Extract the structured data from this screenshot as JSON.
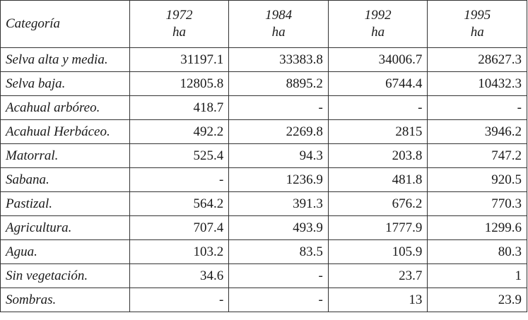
{
  "table": {
    "header": {
      "category": "Categoría",
      "columns": [
        {
          "year": "1972",
          "unit": "ha"
        },
        {
          "year": "1984",
          "unit": "ha"
        },
        {
          "year": "1992",
          "unit": "ha"
        },
        {
          "year": "1995",
          "unit": "ha"
        }
      ]
    },
    "rows": [
      [
        "Selva alta y media.",
        "31197.1",
        "33383.8",
        "34006.7",
        "28627.3"
      ],
      [
        "Selva baja.",
        "12805.8",
        "8895.2",
        "6744.4",
        "10432.3"
      ],
      [
        "Acahual arbóreo.",
        "418.7",
        "-",
        "-",
        "-"
      ],
      [
        "Acahual Herbáceo.",
        "492.2",
        "2269.8",
        "2815",
        "3946.2"
      ],
      [
        "Matorral.",
        "525.4",
        "94.3",
        "203.8",
        "747.2"
      ],
      [
        "Sabana.",
        "-",
        "1236.9",
        "481.8",
        "920.5"
      ],
      [
        "Pastizal.",
        "564.2",
        "391.3",
        "676.2",
        "770.3"
      ],
      [
        "Agricultura.",
        "707.4",
        "493.9",
        "1777.9",
        "1299.6"
      ],
      [
        "Agua.",
        "103.2",
        "83.5",
        "105.9",
        "80.3"
      ],
      [
        "Sin vegetación.",
        "34.6",
        "-",
        "23.7",
        "1"
      ],
      [
        "Sombras.",
        "-",
        "-",
        "13",
        "23.9"
      ]
    ]
  }
}
